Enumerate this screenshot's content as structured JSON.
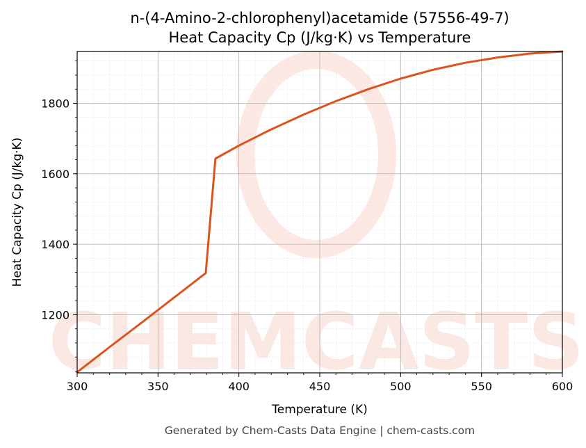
{
  "chart_data": {
    "type": "line",
    "title_line1": "n-(4-Amino-2-chlorophenyl)acetamide (57556-49-7)",
    "title_line2": "Heat Capacity Cp (J/kg·K) vs Temperature",
    "xlabel": "Temperature (K)",
    "ylabel": "Heat Capacity Cp (J/kg·K)",
    "xlim": [
      300,
      600
    ],
    "ylim": [
      1035,
      1947
    ],
    "xticks": [
      300,
      350,
      400,
      450,
      500,
      550,
      600
    ],
    "yticks": [
      1200,
      1400,
      1600,
      1800
    ],
    "grid": true,
    "line_color": "#d9541e",
    "series": [
      {
        "x": [
          300,
          320,
          340,
          360,
          379.5,
          385.5,
          400,
          420,
          440,
          460,
          480,
          500,
          520,
          540,
          560,
          580,
          600
        ],
        "y": [
          1037,
          1108,
          1178,
          1249,
          1318,
          1643,
          1680,
          1726,
          1768,
          1806,
          1840,
          1870,
          1895,
          1915,
          1930,
          1941,
          1947
        ]
      }
    ]
  },
  "watermark": "CHEMCASTS",
  "footer": "Generated by Chem-Casts Data Engine | chem-casts.com"
}
